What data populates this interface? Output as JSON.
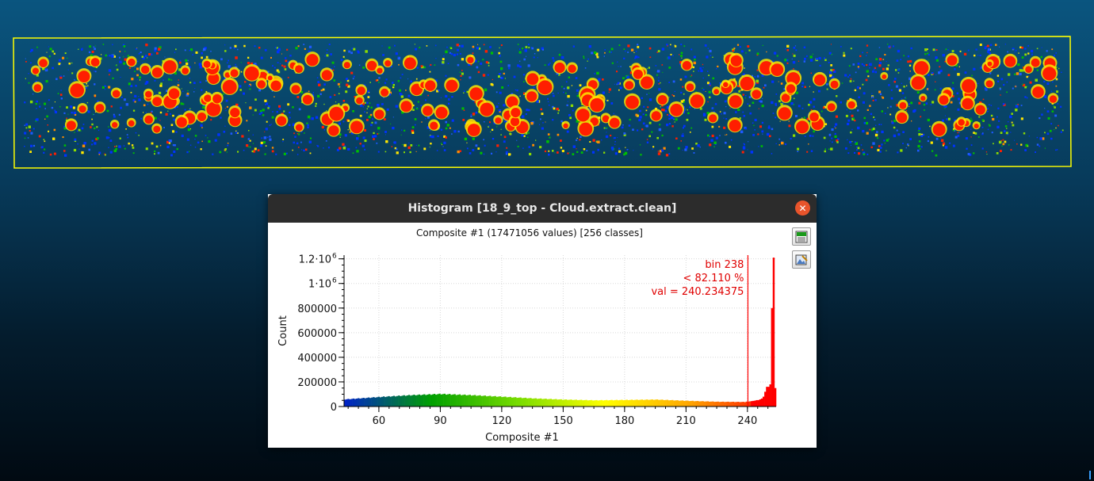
{
  "dialog": {
    "title": "Histogram [18_9_top - Cloud.extract.clean]",
    "close_icon": "close-icon",
    "tools": [
      {
        "name": "export-csv-button",
        "icon": "csv-export-icon"
      },
      {
        "name": "export-image-button",
        "icon": "image-export-icon"
      }
    ]
  },
  "chart_data": {
    "type": "bar",
    "title": "Composite #1 (17471056 values)  [256 classes]",
    "xlabel": "Composite #1",
    "ylabel": "Count",
    "xlim": [
      43,
      254
    ],
    "ylim": [
      0,
      1230000
    ],
    "bin_count": 256,
    "xticks": [
      60,
      90,
      120,
      150,
      180,
      210,
      240
    ],
    "yticks": [
      {
        "value": 0,
        "label": "0",
        "exp": ""
      },
      {
        "value": 200000,
        "label": "200000",
        "exp": ""
      },
      {
        "value": 400000,
        "label": "400000",
        "exp": ""
      },
      {
        "value": 600000,
        "label": "600000",
        "exp": ""
      },
      {
        "value": 800000,
        "label": "800000",
        "exp": ""
      },
      {
        "value": 1000000,
        "label": "1·10",
        "exp": "6"
      },
      {
        "value": 1200000,
        "label": "1.2·10",
        "exp": "6"
      }
    ],
    "grid": true,
    "profile": [
      [
        43,
        60000
      ],
      [
        60,
        80000
      ],
      [
        75,
        95000
      ],
      [
        90,
        105000
      ],
      [
        105,
        95000
      ],
      [
        120,
        82000
      ],
      [
        135,
        68000
      ],
      [
        150,
        58000
      ],
      [
        165,
        52000
      ],
      [
        180,
        55000
      ],
      [
        195,
        58000
      ],
      [
        210,
        48000
      ],
      [
        225,
        40000
      ],
      [
        238,
        38000
      ]
    ],
    "tail": [
      [
        239,
        40000
      ],
      [
        240,
        42000
      ],
      [
        241,
        44000
      ],
      [
        242,
        46000
      ],
      [
        243,
        48000
      ],
      [
        244,
        52000
      ],
      [
        245,
        58000
      ],
      [
        246,
        65000
      ],
      [
        247,
        80000
      ],
      [
        248,
        120000
      ],
      [
        249,
        160000
      ],
      [
        250,
        180000
      ],
      [
        251,
        800000
      ],
      [
        252,
        1210000
      ],
      [
        253,
        150000
      ]
    ],
    "marker": {
      "x": 240.234375,
      "lines": [
        "bin 238",
        "< 82.110 %",
        "val = 240.234375"
      ],
      "color": "#ff0000"
    },
    "colormap": [
      "#0022c8",
      "#00a000",
      "#78dc00",
      "#ffff00",
      "#ffa500",
      "#ff0000"
    ]
  },
  "scene": {
    "bbox_color": "#ffff00",
    "point_colors": [
      "#0033ff",
      "#1e5aff",
      "#00c000",
      "#8cdc00",
      "#ffe600",
      "#ff8c00",
      "#ff1e00"
    ]
  }
}
